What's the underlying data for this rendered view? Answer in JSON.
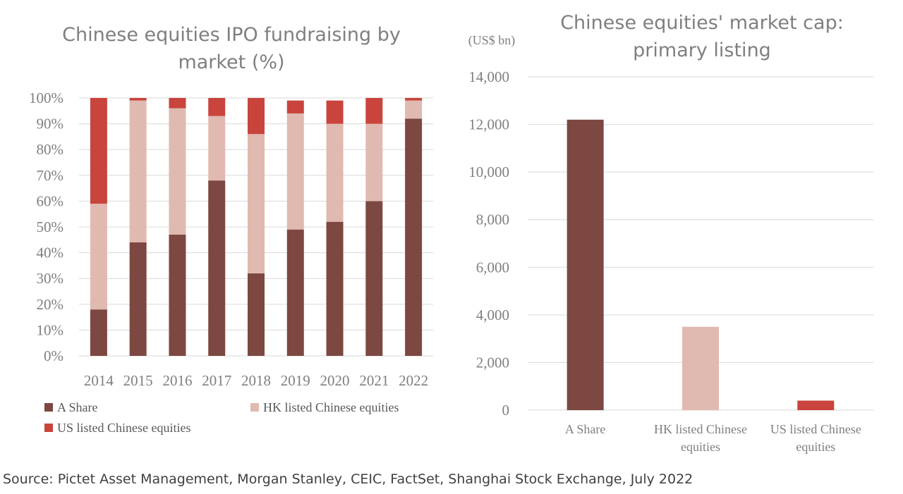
{
  "colors": {
    "a_share": "#7c4841",
    "hk": "#e0b9b0",
    "us": "#c9443c",
    "grid": "#d9d9d9",
    "text": "#7f7f7f"
  },
  "chart_data": [
    {
      "type": "bar",
      "stacked": true,
      "title_lines": [
        "Chinese equities IPO fundraising by",
        "market (%)"
      ],
      "categories": [
        "2014",
        "2015",
        "2016",
        "2017",
        "2018",
        "2019",
        "2020",
        "2021",
        "2022"
      ],
      "ylim": [
        0,
        100
      ],
      "yticks": [
        "0%",
        "10%",
        "20%",
        "30%",
        "40%",
        "50%",
        "60%",
        "70%",
        "80%",
        "90%",
        "100%"
      ],
      "grid": true,
      "legend_position": "bottom",
      "series": [
        {
          "name": "A Share",
          "values": [
            18,
            44,
            47,
            68,
            32,
            49,
            52,
            60,
            92
          ]
        },
        {
          "name": "HK listed Chinese equities",
          "values": [
            41,
            55,
            49,
            25,
            54,
            45,
            38,
            30,
            7
          ]
        },
        {
          "name": "US listed Chinese equities",
          "values": [
            41,
            1,
            4,
            7,
            14,
            5,
            9,
            10,
            1
          ]
        }
      ]
    },
    {
      "type": "bar",
      "title_lines": [
        "Chinese equities' market cap:",
        "primary listing"
      ],
      "unit_label": "(US$ bn)",
      "categories": [
        [
          "A Share"
        ],
        [
          "HK listed Chinese",
          "equities"
        ],
        [
          "US listed Chinese",
          "equities"
        ]
      ],
      "values": [
        12200,
        3500,
        400
      ],
      "ylim": [
        0,
        14000
      ],
      "yticks": [
        "0",
        "2,000",
        "4,000",
        "6,000",
        "8,000",
        "10,000",
        "12,000",
        "14,000"
      ],
      "grid": true
    }
  ],
  "source": "Source: Pictet Asset Management, Morgan Stanley, CEIC, FactSet, Shanghai Stock Exchange, July 2022"
}
